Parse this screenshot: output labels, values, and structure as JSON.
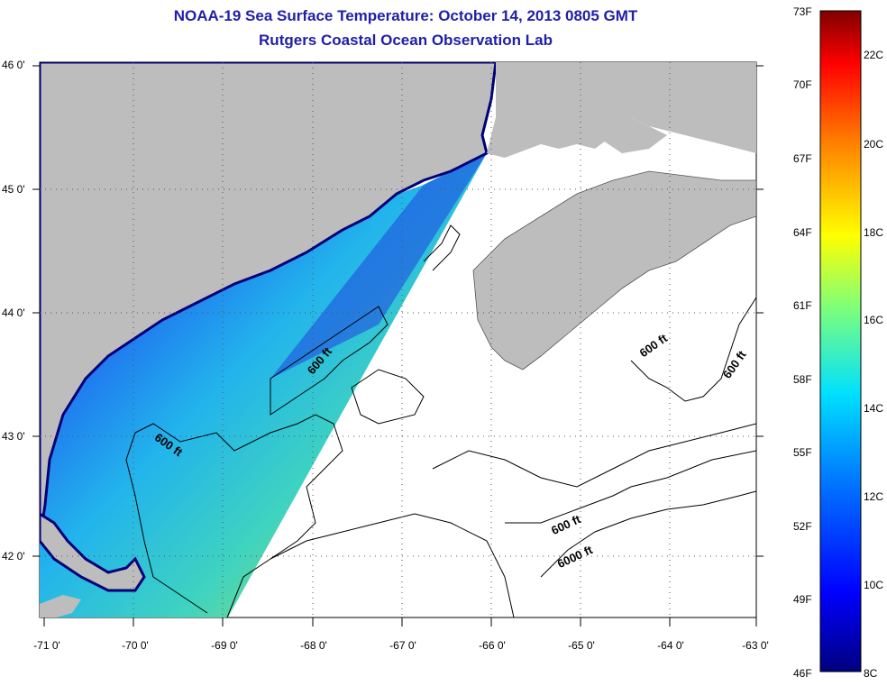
{
  "title": "NOAA-19 Sea Surface Temperature:  October 14, 2013 0805 GMT",
  "subtitle": "Rutgers Coastal Ocean Observation Lab",
  "map": {
    "lat_ticks": [
      "46 0'",
      "45 0'",
      "44 0'",
      "43 0'",
      "42 0'"
    ],
    "lon_ticks": [
      "-71 0'",
      "-70 0'",
      "-69 0'",
      "-68 0'",
      "-67 0'",
      "-66 0'",
      "-65 0'",
      "-64 0'",
      "-63 0'"
    ],
    "contour_labels": [
      "600 ft",
      "600 ft",
      "600 ft",
      "600 ft",
      "600 ft",
      "6000 ft"
    ],
    "colors": {
      "land": "#bdbdbd",
      "coast": "#00007a",
      "contour": "#000000"
    }
  },
  "colorbar": {
    "f_labels": [
      "73F",
      "70F",
      "67F",
      "64F",
      "61F",
      "58F",
      "55F",
      "52F",
      "49F",
      "46F"
    ],
    "c_labels": [
      "22C",
      "20C",
      "18C",
      "16C",
      "14C",
      "12C",
      "10C",
      "8C"
    ],
    "f_min": 46,
    "f_max": 73
  }
}
